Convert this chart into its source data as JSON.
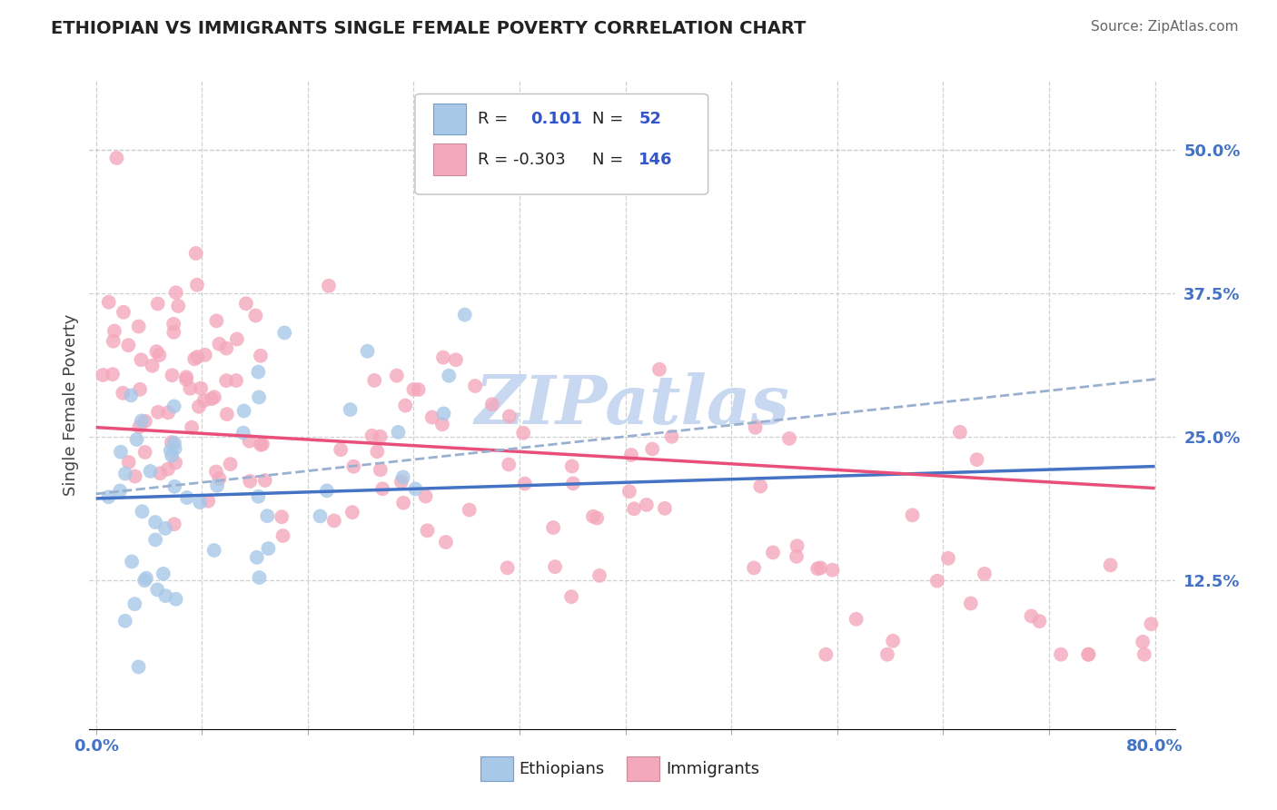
{
  "title": "ETHIOPIAN VS IMMIGRANTS SINGLE FEMALE POVERTY CORRELATION CHART",
  "source": "Source: ZipAtlas.com",
  "ylabel": "Single Female Poverty",
  "xmin": 0.0,
  "xmax": 0.8,
  "ymin": 0.0,
  "ymax": 0.56,
  "ytick_positions": [
    0.125,
    0.25,
    0.375,
    0.5
  ],
  "ytick_labels": [
    "12.5%",
    "25.0%",
    "37.5%",
    "50.0%"
  ],
  "grid_color": "#d0d0d0",
  "background_color": "#ffffff",
  "ethiopian_color": "#a8c8e8",
  "immigrant_color": "#f4a8bc",
  "trend_ethiopian_color": "#4472c4",
  "trend_immigrant_color": "#e8507a",
  "trend_dashed_color": "#9ab0d0",
  "tick_label_color": "#4472c4",
  "watermark_color": "#c8d8f0",
  "title_color": "#222222",
  "source_color": "#666666",
  "ylabel_color": "#444444",
  "legend_border_color": "#c0c0c0",
  "legend_text_color": "#222222",
  "legend_value_color": "#3355cc",
  "eth_r": "0.101",
  "eth_n": "52",
  "imm_r": "-0.303",
  "imm_n": "146",
  "eth_trend_x0": 0.0,
  "eth_trend_x1": 0.8,
  "eth_trend_y0": 0.196,
  "eth_trend_y1": 0.224,
  "imm_trend_x0": 0.0,
  "imm_trend_x1": 0.8,
  "imm_trend_y0": 0.258,
  "imm_trend_y1": 0.205,
  "dash_trend_x0": 0.0,
  "dash_trend_x1": 0.8,
  "dash_trend_y0": 0.2,
  "dash_trend_y1": 0.3
}
